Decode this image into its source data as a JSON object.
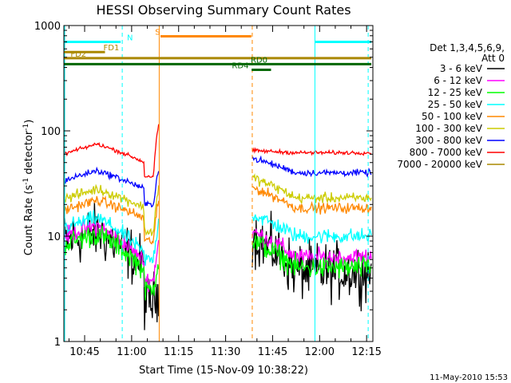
{
  "chart_data": {
    "type": "line",
    "title": "HESSI Observing Summary Count Rates",
    "xlabel": "Start Time (15-Nov-09 10:38:22)",
    "ylabel_prefix": "Count Rate (s",
    "ylabel_sup1": "-1",
    "ylabel_mid": " detector",
    "ylabel_sup2": "-1",
    "ylabel_suffix": ")",
    "y_scale": "log",
    "ylim": [
      1,
      1000
    ],
    "xlim_minutes": [
      638.37,
      737
    ],
    "x_ticks": [
      {
        "min": 645,
        "label": "10:45"
      },
      {
        "min": 660,
        "label": "11:00"
      },
      {
        "min": 675,
        "label": "11:15"
      },
      {
        "min": 690,
        "label": "11:30"
      },
      {
        "min": 705,
        "label": "11:45"
      },
      {
        "min": 720,
        "label": "12:00"
      },
      {
        "min": 735,
        "label": "12:15"
      }
    ],
    "y_ticks": [
      {
        "value": 1,
        "label": "1"
      },
      {
        "value": 10,
        "label": "10"
      },
      {
        "value": 100,
        "label": "100"
      },
      {
        "value": 1000,
        "label": "1000"
      }
    ],
    "legend_header": [
      "Det 1,3,4,5,6,9,",
      "Att 0"
    ],
    "legend_position": "right",
    "gaps": [
      [
        668.7,
        698.5
      ]
    ],
    "series": [
      {
        "name": "3 - 6 keV",
        "color": "#000000",
        "base": 11.0,
        "noise": 0.22,
        "end": 4.6,
        "pre": 2.4,
        "peak": 3.0,
        "post": 10.0
      },
      {
        "name": "6 - 12 keV",
        "color": "#ff00ff",
        "base": 12.5,
        "noise": 0.07,
        "end": 6.3,
        "pre": 3.8,
        "peak": 9.0,
        "post": 11.0
      },
      {
        "name": "12 - 25 keV",
        "color": "#00ff00",
        "base": 10.5,
        "noise": 0.09,
        "end": 5.0,
        "pre": 3.1,
        "peak": 6.0,
        "post": 9.0
      },
      {
        "name": "25 - 50 keV",
        "color": "#00ffff",
        "base": 15.0,
        "noise": 0.06,
        "end": 10.0,
        "pre": 6.0,
        "peak": 14.0,
        "post": 16.0
      },
      {
        "name": "50 - 100 keV",
        "color": "#ff8800",
        "base": 22.0,
        "noise": 0.04,
        "end": 18.5,
        "pre": 9.0,
        "peak": 22.0,
        "post": 29.0
      },
      {
        "name": "100 - 300 keV",
        "color": "#cccc00",
        "base": 28.0,
        "noise": 0.04,
        "end": 23.0,
        "pre": 11.0,
        "peak": 30.0,
        "post": 36.0
      },
      {
        "name": "300 - 800 keV",
        "color": "#0000ff",
        "base": 42.0,
        "noise": 0.025,
        "end": 40.0,
        "pre": 20.0,
        "peak": 45.0,
        "post": 55.0
      },
      {
        "name": "800 - 7000 keV",
        "color": "#ff0000",
        "base": 75.0,
        "noise": 0.015,
        "end": 62.0,
        "pre": 37.0,
        "peak": 120.0,
        "post": 65.0
      },
      {
        "name": "7000 - 20000 keV",
        "color": "#aa8800",
        "base": 0,
        "noise": 0,
        "end": 0,
        "pre": 0,
        "peak": 0,
        "post": 0
      }
    ],
    "dashed_lines": [
      {
        "minute": 657.0,
        "color": "#00ffff"
      },
      {
        "minute": 698.5,
        "color": "#ff8800"
      },
      {
        "minute": 735.5,
        "color": "#00ffff"
      }
    ],
    "solid_lines": [
      {
        "minute": 718.5,
        "color": "#00ffff"
      },
      {
        "minute": 668.8,
        "color": "#ff8800"
      }
    ],
    "status_bars": [
      {
        "label": "N",
        "color": "#00ffff",
        "text_color": "#00ffff",
        "y": 700,
        "segments": [
          [
            638.37,
            656.5
          ],
          [
            718.5,
            736.5
          ]
        ],
        "label_at": 658.5
      },
      {
        "label": "S",
        "color": "#ff8800",
        "text_color": "#ff8800",
        "y": 790,
        "segments": [
          [
            669.2,
            698.2
          ]
        ],
        "label_at": 667.5
      },
      {
        "label": "FD1",
        "color": "#aa8800",
        "text_color": "#aa8800",
        "y": 560,
        "segments": [
          [
            638.37,
            651.5
          ]
        ],
        "label_at": 651.0
      },
      {
        "label": "FD2",
        "color": "#aa8800",
        "text_color": "#aa8800",
        "y": 490,
        "segments": [
          [
            638.37,
            736.5
          ]
        ],
        "label_at": 640.5
      },
      {
        "label": "RD0",
        "color": "#006600",
        "text_color": "#006600",
        "y": 430,
        "segments": [
          [
            638.37,
            736.5
          ]
        ],
        "label_at": 698.0
      },
      {
        "label": "RD4",
        "color": "#006600",
        "text_color": "#006600",
        "y": 380,
        "segments": [
          [
            698.3,
            704.5
          ]
        ],
        "label_at": 692.0
      }
    ],
    "footer_date": "11-May-2010 15:53"
  }
}
